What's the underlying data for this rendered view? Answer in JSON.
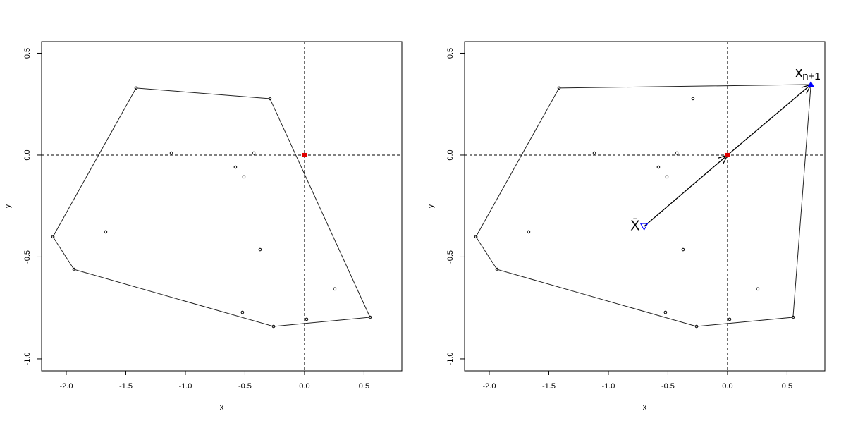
{
  "chart_data": [
    {
      "type": "scatter",
      "x_label": "x",
      "y_label": "y",
      "xlim": [
        -2.207,
        0.817
      ],
      "ylim": [
        -1.059,
        0.557
      ],
      "xticks": [
        {
          "value": -2,
          "label": "-2.0"
        },
        -1.5,
        {
          "value": -1,
          "label": "-1.0"
        },
        -0.5,
        {
          "value": 0,
          "label": "0.0"
        },
        0.5
      ],
      "yticks": [
        {
          "value": -1,
          "label": "-1.0"
        },
        -0.5,
        {
          "value": 0,
          "label": "0.0"
        },
        0.5
      ],
      "vlines": [
        0
      ],
      "hlines": [
        0
      ],
      "series": [
        {
          "marker": "circle",
          "color": "#000000",
          "in_hull": true,
          "x": [
            -2.112,
            -1.935,
            -1.414,
            -0.29,
            0.55,
            -0.26,
            -1.118,
            -0.426,
            -0.58,
            -0.509,
            -1.669,
            -0.373,
            0.254,
            -0.521,
            0.018
          ],
          "y": [
            -0.401,
            -0.561,
            0.329,
            0.277,
            -0.796,
            -0.841,
            0.01,
            0.01,
            -0.059,
            -0.107,
            -0.377,
            -0.464,
            -0.657,
            -0.772,
            -0.806
          ]
        },
        {
          "marker": "square",
          "color": "#e00000",
          "x": [
            0
          ],
          "y": [
            0
          ]
        }
      ]
    },
    {
      "type": "scatter",
      "x_label": "x",
      "y_label": "y",
      "xlim": [
        -2.207,
        0.817
      ],
      "ylim": [
        -1.059,
        0.557
      ],
      "xticks": [
        {
          "value": -2,
          "label": "-2.0"
        },
        -1.5,
        {
          "value": -1,
          "label": "-1.0"
        },
        -0.5,
        {
          "value": 0,
          "label": "0.0"
        },
        0.5
      ],
      "yticks": [
        {
          "value": -1,
          "label": "-1.0"
        },
        -0.5,
        {
          "value": 0,
          "label": "0.0"
        },
        0.5
      ],
      "vlines": [
        0
      ],
      "hlines": [
        0
      ],
      "arrows": true,
      "series": [
        {
          "marker": "circle",
          "color": "#000000",
          "in_hull": true,
          "x": [
            -2.112,
            -1.935,
            -1.414,
            -0.29,
            0.55,
            -0.26,
            -1.118,
            -0.426,
            -0.58,
            -0.509,
            -1.669,
            -0.373,
            0.254,
            -0.521,
            0.018
          ],
          "y": [
            -0.401,
            -0.561,
            0.329,
            0.277,
            -0.796,
            -0.841,
            0.01,
            0.01,
            -0.059,
            -0.107,
            -0.377,
            -0.464,
            -0.657,
            -0.772,
            -0.806
          ]
        },
        {
          "marker": "triangle-down",
          "color": "#0000ff",
          "label": "X̄",
          "x": [
            -0.7
          ],
          "y": [
            -0.35
          ]
        },
        {
          "marker": "square",
          "color": "#e00000",
          "x": [
            0
          ],
          "y": [
            0
          ]
        },
        {
          "marker": "triangle-up",
          "color": "#0000ff",
          "in_hull": true,
          "label": "x",
          "label_sub": "n+1",
          "x": [
            0.7
          ],
          "y": [
            0.346
          ]
        }
      ]
    }
  ]
}
